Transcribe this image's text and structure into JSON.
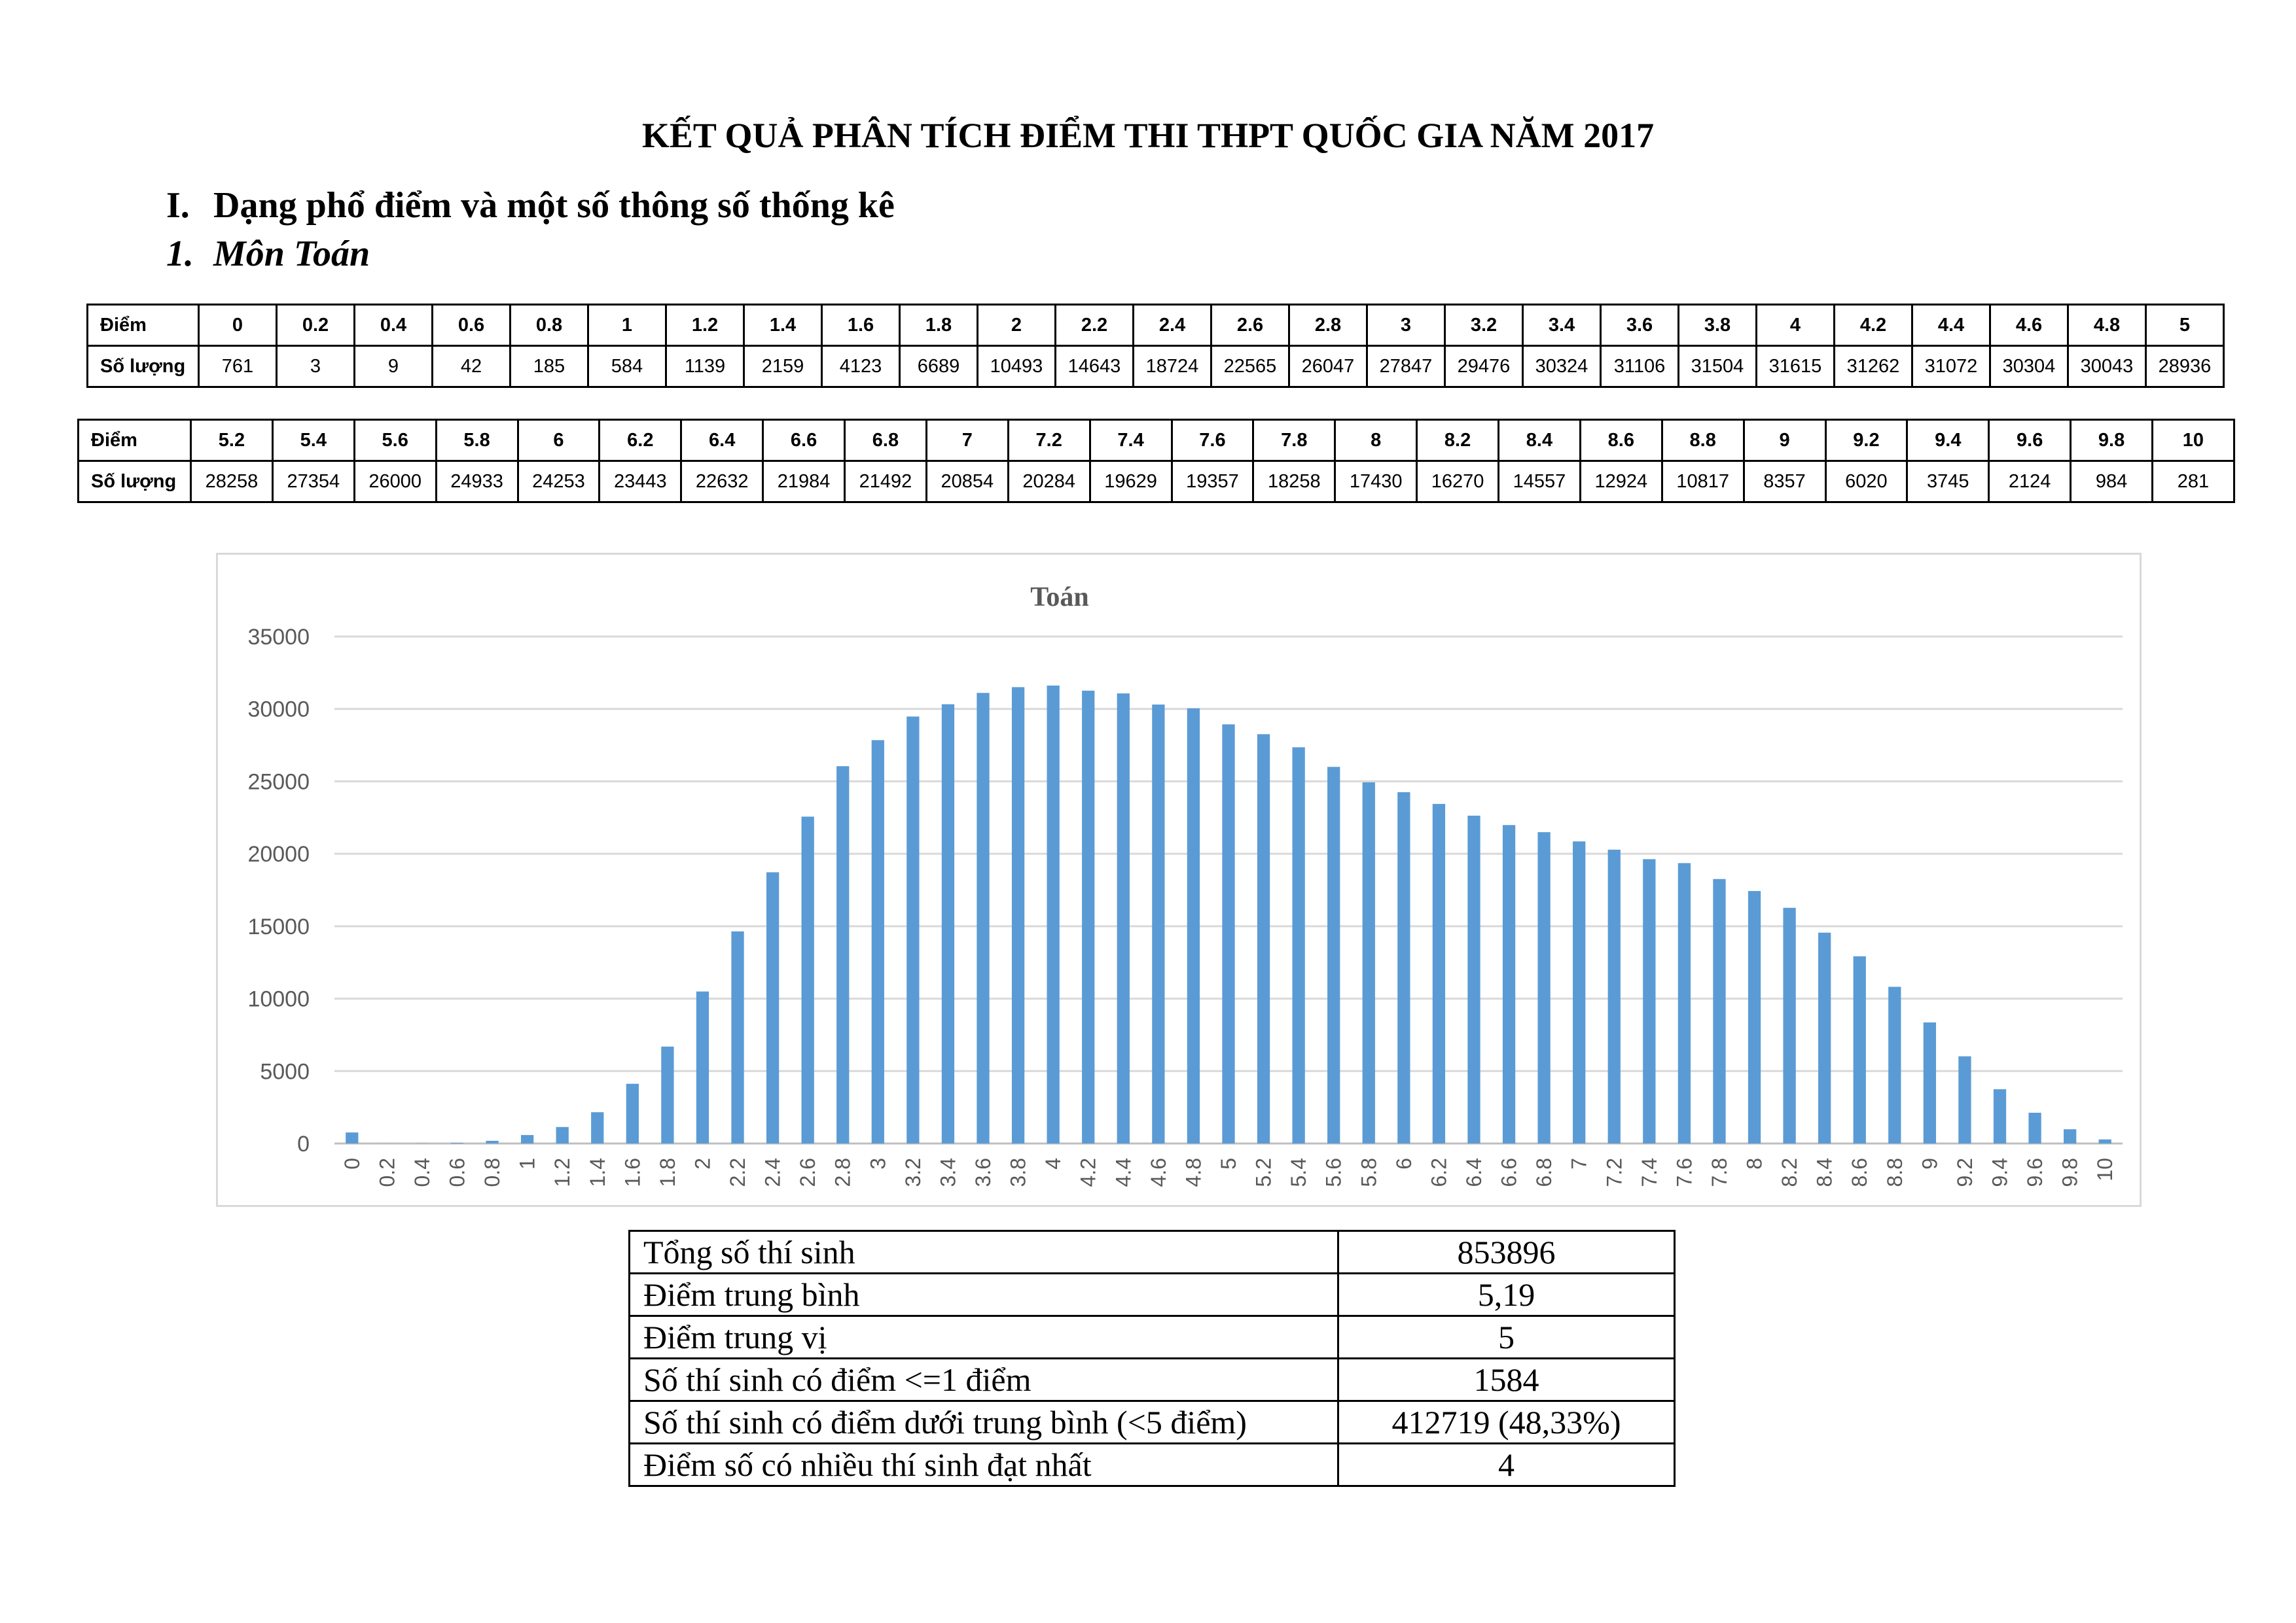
{
  "document": {
    "title": "KẾT QUẢ PHÂN TÍCH ĐIỂM THI THPT QUỐC GIA NĂM 2017",
    "section": {
      "number": "I.",
      "title": "Dạng phổ điểm và một số thông số thống kê"
    },
    "subsection": {
      "number": "1.",
      "title": "Môn Toán"
    }
  },
  "score_tables": [
    {
      "row_label_score": "Điểm",
      "row_label_count": "Số lượng",
      "scores": [
        "0",
        "0.2",
        "0.4",
        "0.6",
        "0.8",
        "1",
        "1.2",
        "1.4",
        "1.6",
        "1.8",
        "2",
        "2.2",
        "2.4",
        "2.6",
        "2.8",
        "3",
        "3.2",
        "3.4",
        "3.6",
        "3.8",
        "4",
        "4.2",
        "4.4",
        "4.6",
        "4.8",
        "5"
      ],
      "counts": [
        "761",
        "3",
        "9",
        "42",
        "185",
        "584",
        "1139",
        "2159",
        "4123",
        "6689",
        "10493",
        "14643",
        "18724",
        "22565",
        "26047",
        "27847",
        "29476",
        "30324",
        "31106",
        "31504",
        "31615",
        "31262",
        "31072",
        "30304",
        "30043",
        "28936"
      ]
    },
    {
      "row_label_score": "Điểm",
      "row_label_count": "Số lượng",
      "scores": [
        "5.2",
        "5.4",
        "5.6",
        "5.8",
        "6",
        "6.2",
        "6.4",
        "6.6",
        "6.8",
        "7",
        "7.2",
        "7.4",
        "7.6",
        "7.8",
        "8",
        "8.2",
        "8.4",
        "8.6",
        "8.8",
        "9",
        "9.2",
        "9.4",
        "9.6",
        "9.8",
        "10"
      ],
      "counts": [
        "28258",
        "27354",
        "26000",
        "24933",
        "24253",
        "23443",
        "22632",
        "21984",
        "21492",
        "20854",
        "20284",
        "19629",
        "19357",
        "18258",
        "17430",
        "16270",
        "14557",
        "12924",
        "10817",
        "8357",
        "6020",
        "3745",
        "2124",
        "984",
        "281"
      ]
    }
  ],
  "chart_data": {
    "type": "bar",
    "title": "Toán",
    "xlabel": "",
    "ylabel": "",
    "ylim": [
      0,
      35000
    ],
    "yticks": [
      0,
      5000,
      10000,
      15000,
      20000,
      25000,
      30000,
      35000
    ],
    "grid": true,
    "legend": "none",
    "bar_color": "#5b9bd5",
    "categories": [
      "0",
      "0.2",
      "0.4",
      "0.6",
      "0.8",
      "1",
      "1.2",
      "1.4",
      "1.6",
      "1.8",
      "2",
      "2.2",
      "2.4",
      "2.6",
      "2.8",
      "3",
      "3.2",
      "3.4",
      "3.6",
      "3.8",
      "4",
      "4.2",
      "4.4",
      "4.6",
      "4.8",
      "5",
      "5.2",
      "5.4",
      "5.6",
      "5.8",
      "6",
      "6.2",
      "6.4",
      "6.6",
      "6.8",
      "7",
      "7.2",
      "7.4",
      "7.6",
      "7.8",
      "8",
      "8.2",
      "8.4",
      "8.6",
      "8.8",
      "9",
      "9.2",
      "9.4",
      "9.6",
      "9.8",
      "10"
    ],
    "values": [
      761,
      3,
      9,
      42,
      185,
      584,
      1139,
      2159,
      4123,
      6689,
      10493,
      14643,
      18724,
      22565,
      26047,
      27847,
      29476,
      30324,
      31106,
      31504,
      31615,
      31262,
      31072,
      30304,
      30043,
      28936,
      28258,
      27354,
      26000,
      24933,
      24253,
      23443,
      22632,
      21984,
      21492,
      20854,
      20284,
      19629,
      19357,
      18258,
      17430,
      16270,
      14557,
      12924,
      10817,
      8357,
      6020,
      3745,
      2124,
      984,
      281
    ]
  },
  "statistics": [
    {
      "label": "Tổng số thí sinh",
      "value": "853896"
    },
    {
      "label": "Điểm trung bình",
      "value": "5,19"
    },
    {
      "label": "Điểm trung vị",
      "value": "5"
    },
    {
      "label": "Số thí sinh có điểm <=1 điểm",
      "value": "1584"
    },
    {
      "label": "Số thí sinh có điểm dưới trung bình (<5 điểm)",
      "value": "412719 (48,33%)"
    },
    {
      "label": "Điểm số có nhiều thí sinh đạt nhất",
      "value": "4"
    }
  ]
}
